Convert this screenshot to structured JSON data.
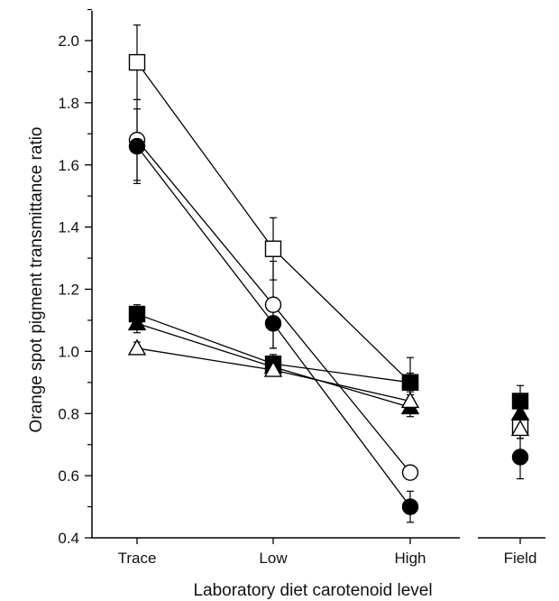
{
  "chart_data": {
    "type": "line",
    "xlabel": "Laboratory diet carotenoid level",
    "ylabel": "Orange spot pigment transmittance ratio",
    "categories": [
      "Trace",
      "Low",
      "High"
    ],
    "extra_category": "Field",
    "ylim": [
      0.4,
      2.1
    ],
    "yticks": [
      0.4,
      0.6,
      0.8,
      1.0,
      1.2,
      1.4,
      1.6,
      1.8,
      2.0
    ],
    "ytick_labels": [
      "0.4",
      "0.6",
      "0.8",
      "1.0",
      "1.2",
      "1.4",
      "1.6",
      "1.8",
      "2.0"
    ],
    "grid": false,
    "series": [
      {
        "marker": "open-square",
        "values": [
          1.93,
          1.33,
          0.9
        ],
        "errors": [
          0.12,
          0.1,
          0.08
        ],
        "field": 0.76,
        "field_error": 0.04
      },
      {
        "marker": "open-circle",
        "values": [
          1.68,
          1.15,
          0.61
        ],
        "errors": [
          0.13,
          0.14,
          0.02
        ],
        "field": null,
        "field_error": null
      },
      {
        "marker": "filled-circle",
        "values": [
          1.66,
          1.09,
          0.5
        ],
        "errors": [
          0.12,
          0.08,
          0.05
        ],
        "field": 0.66,
        "field_error": 0.07
      },
      {
        "marker": "filled-square",
        "values": [
          1.12,
          0.96,
          0.9
        ],
        "errors": [
          0.03,
          0.03,
          0.03
        ],
        "field": 0.84,
        "field_error": 0.05
      },
      {
        "marker": "filled-triangle",
        "values": [
          1.09,
          0.95,
          0.82
        ],
        "errors": [
          0.03,
          0.03,
          0.03
        ],
        "field": 0.8,
        "field_error": 0.04
      },
      {
        "marker": "open-triangle",
        "values": [
          1.01,
          0.94,
          0.84
        ],
        "errors": [
          0.02,
          0.02,
          0.02
        ],
        "field": 0.75,
        "field_error": 0.03
      }
    ]
  }
}
